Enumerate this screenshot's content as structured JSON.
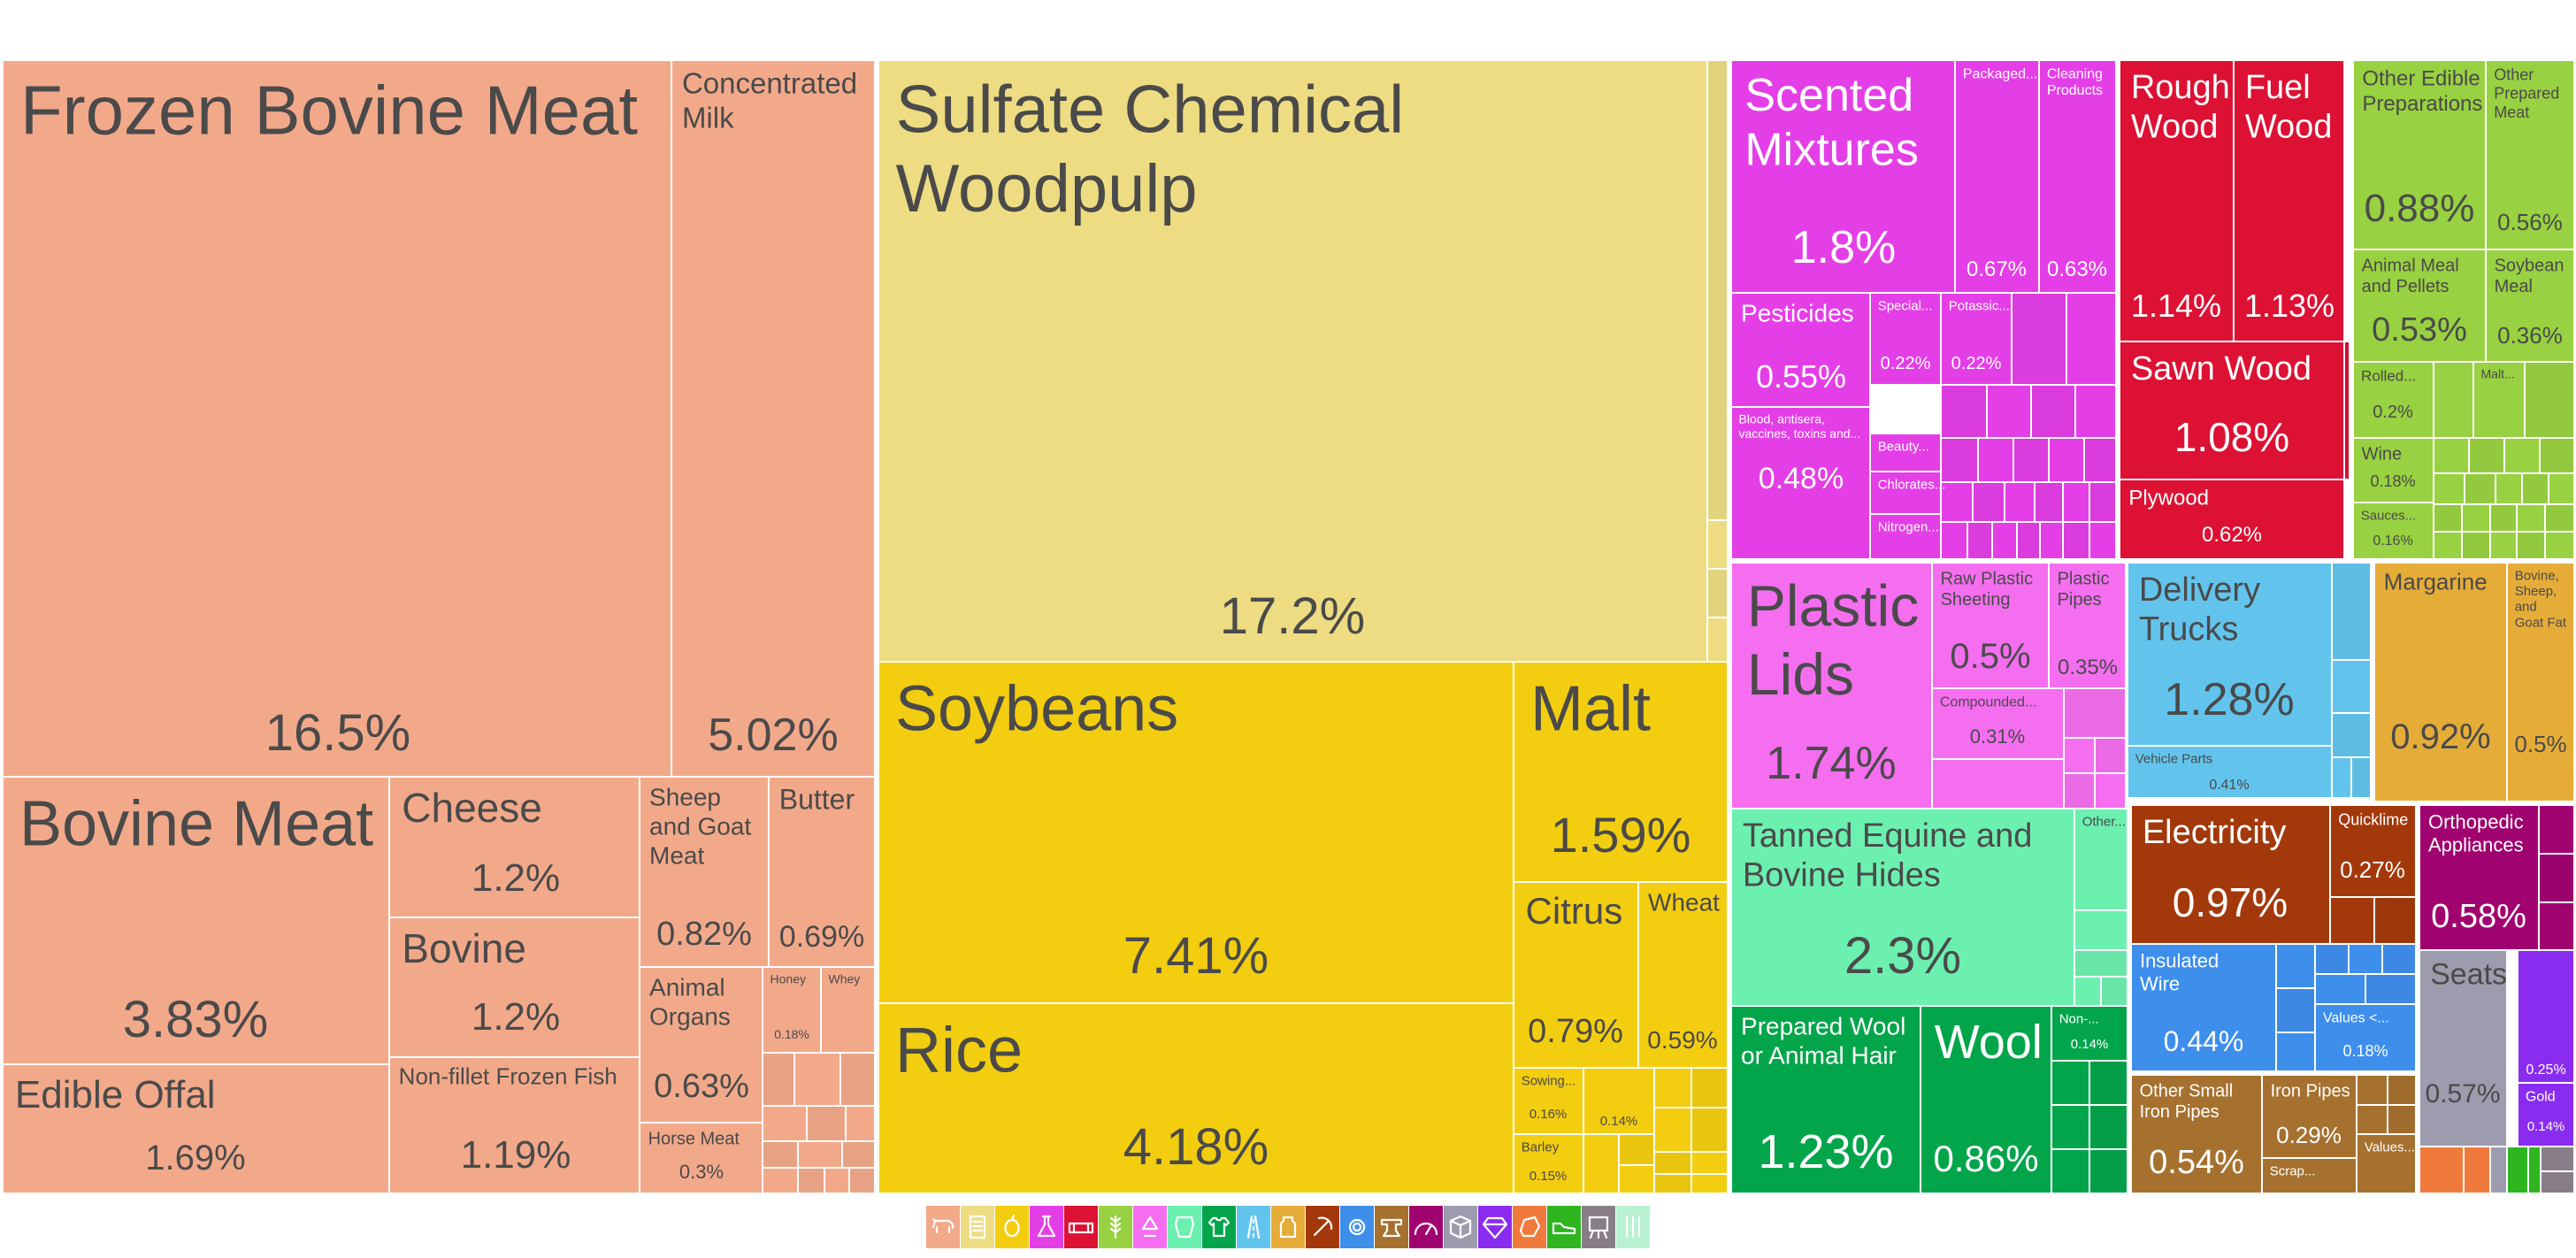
{
  "chart_data": {
    "type": "treemap",
    "sections": [
      {
        "name": "Animal Products",
        "color": "#F2A98A",
        "items": [
          {
            "name": "Frozen Bovine Meat",
            "value": 16.5
          },
          {
            "name": "Concentrated Milk",
            "value": 5.02
          },
          {
            "name": "Bovine Meat",
            "value": 3.83
          },
          {
            "name": "Cheese",
            "value": 1.2
          },
          {
            "name": "Bovine",
            "value": 1.2
          },
          {
            "name": "Sheep and Goat Meat",
            "value": 0.82
          },
          {
            "name": "Butter",
            "value": 0.69
          },
          {
            "name": "Edible Offal",
            "value": 1.69
          },
          {
            "name": "Non-fillet Frozen Fish",
            "value": 1.19
          },
          {
            "name": "Animal Organs",
            "value": 0.63
          },
          {
            "name": "Honey",
            "value": 0.18
          },
          {
            "name": "Whey",
            "value": null
          },
          {
            "name": "Horse Meat",
            "value": 0.3
          }
        ]
      },
      {
        "name": "Paper Goods",
        "color": "#EDDC82",
        "items": [
          {
            "name": "Sulfate Chemical Woodpulp",
            "value": 17.2
          }
        ]
      },
      {
        "name": "Vegetable Products",
        "color": "#F3CD10",
        "items": [
          {
            "name": "Soybeans",
            "value": 7.41
          },
          {
            "name": "Rice",
            "value": 4.18
          },
          {
            "name": "Malt",
            "value": 1.59
          },
          {
            "name": "Citrus",
            "value": 0.79
          },
          {
            "name": "Wheat",
            "value": 0.59
          },
          {
            "name": "Sowing...",
            "value": 0.16
          },
          {
            "name": "",
            "value": 0.14
          },
          {
            "name": "Barley",
            "value": 0.15
          }
        ]
      },
      {
        "name": "Chemical Products",
        "color": "#E43FE6",
        "items": [
          {
            "name": "Scented Mixtures",
            "value": 1.8
          },
          {
            "name": "Packaged...",
            "value": 0.67
          },
          {
            "name": "Cleaning Products",
            "value": 0.63
          },
          {
            "name": "Pesticides",
            "value": 0.55
          },
          {
            "name": "Special...",
            "value": 0.22
          },
          {
            "name": "Potassic...",
            "value": 0.22
          },
          {
            "name": "Blood, antisera, vaccines, toxins and...",
            "value": 0.48
          },
          {
            "name": "Beauty...",
            "value": null
          },
          {
            "name": "Chlorates...",
            "value": null
          },
          {
            "name": "Nitrogen...",
            "value": null
          }
        ]
      },
      {
        "name": "Wood Products",
        "color": "#DC1133",
        "items": [
          {
            "name": "Rough Wood",
            "value": 1.14
          },
          {
            "name": "Fuel Wood",
            "value": 1.13
          },
          {
            "name": "Sawn Wood",
            "value": 1.08
          },
          {
            "name": "Plywood",
            "value": 0.62
          }
        ]
      },
      {
        "name": "Foodstuffs",
        "color": "#98D141",
        "items": [
          {
            "name": "Other Edible Preparations",
            "value": 0.88
          },
          {
            "name": "Other Prepared Meat",
            "value": 0.56
          },
          {
            "name": "Animal Meal and Pellets",
            "value": 0.53
          },
          {
            "name": "Soybean Meal",
            "value": 0.36
          },
          {
            "name": "Rolled...",
            "value": 0.2
          },
          {
            "name": "Malt...",
            "value": null
          },
          {
            "name": "Wine",
            "value": 0.18
          },
          {
            "name": "Sauces...",
            "value": 0.16
          }
        ]
      },
      {
        "name": "Plastics and Rubbers",
        "color": "#F56EF0",
        "items": [
          {
            "name": "Plastic Lids",
            "value": 1.74
          },
          {
            "name": "Raw Plastic Sheeting",
            "value": 0.5
          },
          {
            "name": "Plastic Pipes",
            "value": 0.35
          },
          {
            "name": "Compounded...",
            "value": 0.31
          }
        ]
      },
      {
        "name": "Transportation",
        "color": "#62C4EC",
        "items": [
          {
            "name": "Delivery Trucks",
            "value": 1.28
          },
          {
            "name": "Vehicle Parts",
            "value": 0.41
          }
        ]
      },
      {
        "name": "Animal and Vegetable Bi-Products",
        "color": "#E5AC38",
        "items": [
          {
            "name": "Margarine",
            "value": 0.92
          },
          {
            "name": "Bovine, Sheep, and Goat Fat",
            "value": 0.5
          }
        ]
      },
      {
        "name": "Animal Hides",
        "color": "#6CF0B0",
        "items": [
          {
            "name": "Tanned Equine and Bovine Hides",
            "value": 2.3
          },
          {
            "name": "Other...",
            "value": null
          }
        ]
      },
      {
        "name": "Textiles",
        "color": "#03A54A",
        "items": [
          {
            "name": "Prepared Wool or Animal Hair",
            "value": 1.23
          },
          {
            "name": "Wool",
            "value": 0.86
          },
          {
            "name": "Non-...",
            "value": 0.14
          }
        ]
      },
      {
        "name": "Mineral Products",
        "color": "#A3390B",
        "items": [
          {
            "name": "Electricity",
            "value": 0.97
          },
          {
            "name": "Quicklime",
            "value": 0.27
          }
        ]
      },
      {
        "name": "Machines",
        "color": "#3E8EEC",
        "items": [
          {
            "name": "Insulated Wire",
            "value": 0.44
          },
          {
            "name": "Values <...",
            "value": 0.18
          }
        ]
      },
      {
        "name": "Instruments",
        "color": "#A0026F",
        "items": [
          {
            "name": "Orthopedic Appliances",
            "value": 0.58
          }
        ]
      },
      {
        "name": "Metals",
        "color": "#A6712F",
        "items": [
          {
            "name": "Other Small Iron Pipes",
            "value": 0.54
          },
          {
            "name": "Iron Pipes",
            "value": 0.29
          },
          {
            "name": "Scrap...",
            "value": null
          },
          {
            "name": "Values...",
            "value": null
          }
        ]
      },
      {
        "name": "Miscellaneous",
        "color": "#9C9CAE",
        "items": [
          {
            "name": "Seats",
            "value": 0.57
          }
        ]
      },
      {
        "name": "Precious Metals",
        "color": "#8A2CF0",
        "items": [
          {
            "name": "",
            "value": 0.25
          },
          {
            "name": "Gold",
            "value": 0.14
          }
        ]
      }
    ]
  },
  "legend": [
    {
      "icon": "cow-icon",
      "color": "#F2A98A"
    },
    {
      "icon": "paper-icon",
      "color": "#EDDC82"
    },
    {
      "icon": "fruit-icon",
      "color": "#F3CD10"
    },
    {
      "icon": "flask-icon",
      "color": "#E43FE6"
    },
    {
      "icon": "log-icon",
      "color": "#DC1133"
    },
    {
      "icon": "wheat-icon",
      "color": "#98D141"
    },
    {
      "icon": "recycle-icon",
      "color": "#F56EF0"
    },
    {
      "icon": "hide-icon",
      "color": "#6CF0B0"
    },
    {
      "icon": "shirt-icon",
      "color": "#03A54A"
    },
    {
      "icon": "road-icon",
      "color": "#62C4EC"
    },
    {
      "icon": "jar-icon",
      "color": "#E5AC38"
    },
    {
      "icon": "pickaxe-icon",
      "color": "#A3390B"
    },
    {
      "icon": "gear-icon",
      "color": "#3E8EEC"
    },
    {
      "icon": "anvil-icon",
      "color": "#A6712F"
    },
    {
      "icon": "gauge-icon",
      "color": "#A0026F"
    },
    {
      "icon": "box-icon",
      "color": "#9C9CAE"
    },
    {
      "icon": "gem-icon",
      "color": "#8A2CF0"
    },
    {
      "icon": "stone-icon",
      "color": "#F07A3C"
    },
    {
      "icon": "shoe-icon",
      "color": "#2EB51F"
    },
    {
      "icon": "easel-icon",
      "color": "#877E88"
    },
    {
      "icon": "weapons-icon",
      "color": "#B8F2D2"
    }
  ]
}
